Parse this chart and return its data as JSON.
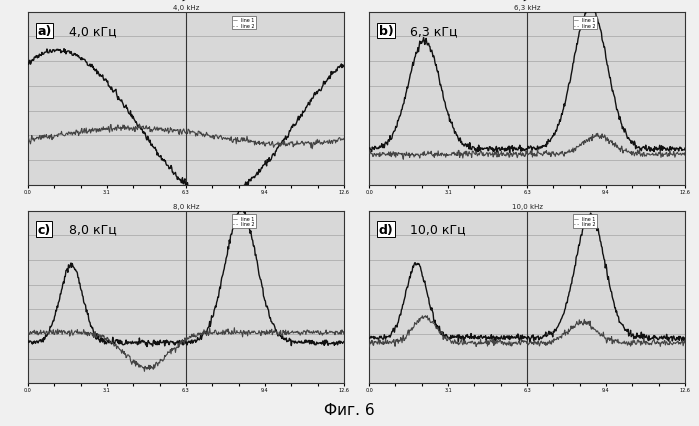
{
  "panels": [
    {
      "label": "a)",
      "freq": "4,0 кГц",
      "title_top": "4,0 kHz"
    },
    {
      "label": "b)",
      "freq": "6,3 кГц",
      "title_top": "6,3 kHz"
    },
    {
      "label": "c)",
      "freq": "8,0 кГц",
      "title_top": "8,0 kHz"
    },
    {
      "label": "d)",
      "freq": "10,0 кГц",
      "title_top": "10,0 kHz"
    }
  ],
  "fig_caption": "Фиг. 6",
  "bg_color": "#e8e8e8",
  "line1_color": "#000000",
  "line2_color": "#555555",
  "grid_color": "#aaaaaa"
}
